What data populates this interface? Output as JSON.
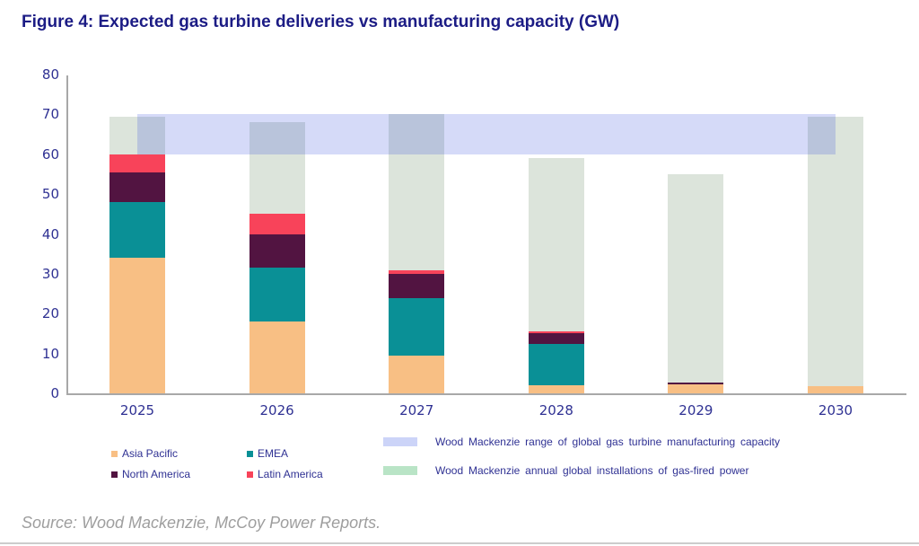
{
  "title": "Figure 4: Expected gas turbine deliveries vs manufacturing capacity (GW)",
  "source": "Source: Wood Mackenzie, McCoy Power Reports.",
  "colors": {
    "title_navy": "#1c1c85",
    "label_navy": "#2f3193",
    "axis_gray": "#a8a8a8",
    "asia_pacific": "#f8bf84",
    "emea": "#0a9096",
    "north_america": "#521441",
    "latin_america": "#f8435a",
    "installations_bar": "#dce4db",
    "capacity_band": "rgba(45,70,220,0.2)",
    "legend_capacity_swatch": "#ccd4f8",
    "legend_installations_swatch": "#b9e4c6"
  },
  "chart_data": {
    "type": "bar",
    "stacked": true,
    "title": "Figure 4: Expected gas turbine deliveries vs manufacturing capacity (GW)",
    "categories": [
      "2025",
      "2026",
      "2027",
      "2028",
      "2029",
      "2030"
    ],
    "series": [
      {
        "name": "Asia Pacific",
        "color": "#f8bf84",
        "values": [
          34,
          18,
          9.5,
          2,
          2.2,
          1.9
        ]
      },
      {
        "name": "EMEA",
        "color": "#0a9096",
        "values": [
          14,
          13.5,
          14.5,
          10.5,
          0,
          0
        ]
      },
      {
        "name": "North America",
        "color": "#521441",
        "values": [
          7.5,
          8.5,
          6,
          2.5,
          0.5,
          0
        ]
      },
      {
        "name": "Latin America",
        "color": "#f8435a",
        "values": [
          4.5,
          5,
          0.8,
          0.6,
          0,
          0
        ]
      }
    ],
    "background_series": {
      "name": "Wood Mackenzie annual global installations of gas-fired power",
      "color": "#dce4db",
      "values": [
        69.5,
        68,
        70,
        59,
        55,
        69.5
      ]
    },
    "band": {
      "name": "Wood Mackenzie range of global gas turbine manufacturing capacity",
      "from": 60,
      "to": 70,
      "color": "rgba(45,70,220,0.2)"
    },
    "ylim": [
      0,
      80
    ],
    "yticks": [
      0,
      10,
      20,
      30,
      40,
      50,
      60,
      70,
      80
    ],
    "xlabel": "",
    "ylabel": "",
    "grid": false,
    "legend_position": "bottom"
  },
  "legend": {
    "regions": [
      {
        "label": "Asia Pacific",
        "color": "#f8bf84"
      },
      {
        "label": "EMEA",
        "color": "#0a9096"
      },
      {
        "label": "North America",
        "color": "#521441"
      },
      {
        "label": "Latin America",
        "color": "#f8435a"
      }
    ],
    "ranges": [
      {
        "label": "Wood Mackenzie range of global gas turbine manufacturing capacity",
        "color": "#ccd4f8"
      },
      {
        "label": "Wood Mackenzie annual global installations of gas-fired power",
        "color": "#b9e4c6"
      }
    ]
  }
}
